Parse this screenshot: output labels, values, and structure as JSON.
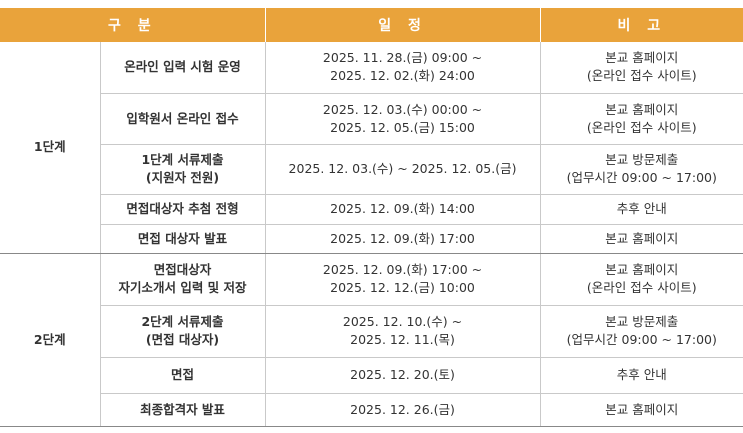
{
  "header": [
    "구 분",
    "일 정",
    "비 고"
  ],
  "groups": [
    {
      "label": "1단계",
      "rows": [
        {
          "item": [
            "온라인 입력 시험 운영"
          ],
          "schedule": [
            "2025. 11. 28.(금) 09:00 ~",
            "2025. 12. 02.(화) 24:00"
          ],
          "note": [
            "본교 홈페이지",
            "(온라인 접수 사이트)"
          ]
        },
        {
          "item": [
            "입학원서 온라인 접수"
          ],
          "schedule": [
            "2025. 12. 03.(수) 00:00 ~",
            "2025. 12. 05.(금) 15:00"
          ],
          "note": [
            "본교 홈페이지",
            "(온라인 접수 사이트)"
          ]
        },
        {
          "item": [
            "1단계 서류제출",
            "(지원자 전원)"
          ],
          "schedule": [
            "2025. 12. 03.(수) ~ 2025. 12. 05.(금)"
          ],
          "note": [
            "본교 방문제출",
            "(업무시간 09:00 ~ 17:00)"
          ]
        },
        {
          "item": [
            "면접대상자 추첨 전형"
          ],
          "schedule": [
            "2025. 12. 09.(화) 14:00"
          ],
          "note": [
            "추후 안내"
          ]
        },
        {
          "item": [
            "면접 대상자 발표"
          ],
          "schedule": [
            "2025. 12. 09.(화) 17:00"
          ],
          "note": [
            "본교 홈페이지"
          ]
        }
      ]
    },
    {
      "label": "2단계",
      "rows": [
        {
          "item": [
            "면접대상자",
            "자기소개서 입력 및 저장"
          ],
          "schedule": [
            "2025. 12. 09.(화) 17:00 ~",
            "2025. 12. 12.(금) 10:00"
          ],
          "note": [
            "본교 홈페이지",
            "(온라인 접수 사이트)"
          ]
        },
        {
          "item": [
            "2단계 서류제출",
            "(면접 대상자)"
          ],
          "schedule": [
            "2025. 12. 10.(수) ~",
            "2025. 12. 11.(목)"
          ],
          "note": [
            "본교 방문제출",
            "(업무시간 09:00 ~ 17:00)"
          ]
        },
        {
          "item": [
            "면접"
          ],
          "schedule": [
            "2025. 12. 20.(토)"
          ],
          "note": [
            "추후 안내"
          ]
        },
        {
          "item": [
            "최종합격자 발표"
          ],
          "schedule": [
            "2025. 12. 26.(금)"
          ],
          "note": [
            "본교 홈페이지"
          ]
        }
      ]
    }
  ]
}
